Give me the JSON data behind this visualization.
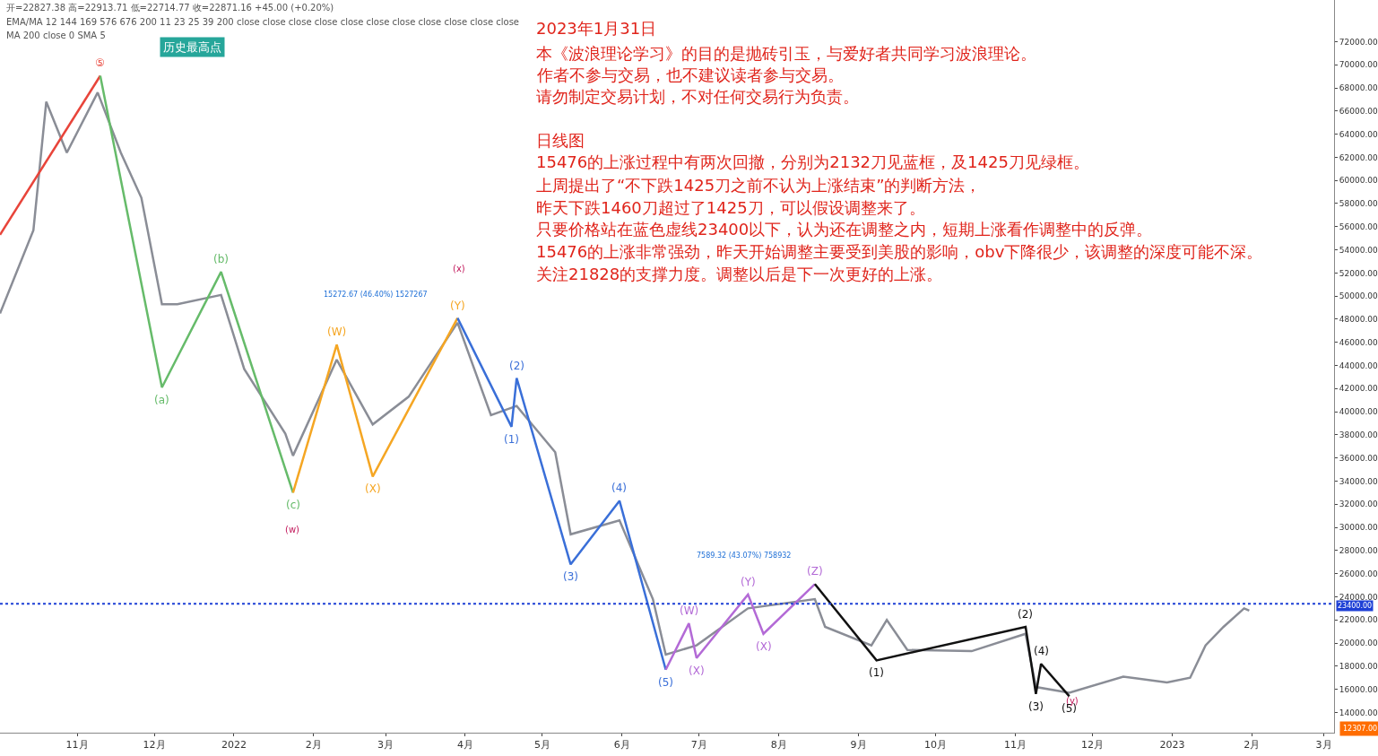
{
  "chart_data": {
    "type": "line",
    "title": "2023年1月31日",
    "annotations": [
      "开=22827.38 高=22913.71 低=22714.77 收=22871.16 +45.00 (+0.20%)",
      "EMA/MA 12 144 169 576 676 200 11 23 25 39 200 close close close close close close close close close close close",
      "MA 200 close 0 SMA 5",
      "本《波浪理论学习》的目的是抛砖引玉，与爱好者共同学习波浪理论。",
      "作者不参与交易，也不建议读者参与交易。",
      "请勿制定交易计划，不对任何交易行为负责。",
      "日线图",
      "15476的上涨过程中有两次回撤，分别为2132刀见蓝框，及1425刀见绿框。",
      "上周提出了“不下跌1425刀之前不认为上涨结束”的判断方法，",
      "昨天下跌1460刀超过了1425刀，可以假设调整来了。",
      "只要价格站在蓝色虚线23400以下，认为还在调整之内，短期上涨看作调整中的反弹。",
      "15476的上涨非常强劲，昨天开始调整主要受到美股的影响，obv下降很少，该调整的深度可能不深。",
      "关注21828的支撑力度。调整以后是下一次更好的上涨。",
      "12307.00",
      "历史最高点",
      "(w)",
      "(x)",
      "(y)",
      "15272.67 (46.40%) 1527267",
      "7589.32 (43.07%) 758932",
      {
        "text": "⑤",
        "x": "2021-11-10",
        "y": 69050
      },
      {
        "text": "(a)",
        "x": "2021-12-04",
        "y": 42100
      },
      {
        "text": "(b)",
        "x": "2021-12-27",
        "y": 52100
      },
      {
        "text": "(c)",
        "x": "2022-01-24",
        "y": 33000
      },
      {
        "text": "(W)",
        "x": "2022-02-10",
        "y": 45800
      },
      {
        "text": "(X)",
        "x": "2022-02-24",
        "y": 34400
      },
      {
        "text": "(Y)",
        "x": "2022-03-29",
        "y": 48100
      },
      {
        "text": "(1)",
        "x": "2022-04-19",
        "y": 38700
      },
      {
        "text": "(2)",
        "x": "2022-04-21",
        "y": 42900
      },
      {
        "text": "(3)",
        "x": "2022-05-12",
        "y": 26800
      },
      {
        "text": "(4)",
        "x": "2022-05-31",
        "y": 32300
      },
      {
        "text": "(5)",
        "x": "2022-06-18",
        "y": 17700
      },
      {
        "text": "(W)",
        "x": "2022-06-27",
        "y": 21700
      },
      {
        "text": "(X)",
        "x": "2022-06-30",
        "y": 18700
      },
      {
        "text": "(Y)",
        "x": "2022-07-20",
        "y": 24200
      },
      {
        "text": "(X)",
        "x": "2022-07-26",
        "y": 20800
      },
      {
        "text": "(Z)",
        "x": "2022-08-15",
        "y": 25100
      },
      {
        "text": "(1)",
        "x": "2022-09-08",
        "y": 18500
      },
      {
        "text": "(2)",
        "x": "2022-11-05",
        "y": 21400
      },
      {
        "text": "(3)",
        "x": "2022-11-09",
        "y": 15600
      },
      {
        "text": "(4)",
        "x": "2022-11-11",
        "y": 18200
      },
      {
        "text": "(5)",
        "x": "2022-11-22",
        "y": 15400
      }
    ],
    "series": [
      {
        "color": "#8a8d96",
        "x": [
          "2021-10-02",
          "2021-10-15",
          "2021-10-20",
          "2021-10-28",
          "2021-11-09",
          "2021-11-18",
          "2021-11-26",
          "2021-12-04",
          "2021-12-10",
          "2021-12-27",
          "2022-01-05",
          "2022-01-21",
          "2022-01-24",
          "2022-02-10",
          "2022-02-24",
          "2022-03-10",
          "2022-03-29",
          "2022-04-11",
          "2022-04-21",
          "2022-05-06",
          "2022-05-12",
          "2022-05-31",
          "2022-06-13",
          "2022-06-18",
          "2022-06-30",
          "2022-07-20",
          "2022-08-15",
          "2022-08-19",
          "2022-09-06",
          "2022-09-12",
          "2022-09-20",
          "2022-10-15",
          "2022-11-05",
          "2022-11-09",
          "2022-11-22",
          "2022-12-13",
          "2022-12-30",
          "2023-01-08",
          "2023-01-14",
          "2023-01-21",
          "2023-01-29",
          "2023-01-31"
        ],
        "values": [
          48500,
          55700,
          66800,
          62400,
          67600,
          62400,
          58500,
          49300,
          49300,
          50100,
          43700,
          38100,
          36200,
          44500,
          38900,
          41300,
          47700,
          39700,
          40500,
          36500,
          29400,
          30600,
          23800,
          19000,
          19800,
          23000,
          23800,
          21400,
          19800,
          22000,
          19400,
          19300,
          20800,
          16200,
          15700,
          17100,
          16600,
          17000,
          19800,
          21400,
          23000,
          22800
        ]
      },
      {
        "color": "#e8443a",
        "x": [
          "2021-10-02",
          "2021-11-10"
        ],
        "values": [
          55300,
          69050
        ]
      },
      {
        "color": "#66bb6a",
        "x": [
          "2021-11-10",
          "2021-12-04",
          "2021-12-27",
          "2022-01-24"
        ],
        "values": [
          69050,
          42100,
          52100,
          33000
        ]
      },
      {
        "color": "#f5a623",
        "x": [
          "2022-01-24",
          "2022-02-10",
          "2022-02-24",
          "2022-03-29"
        ],
        "values": [
          33000,
          45800,
          34400,
          48100
        ]
      },
      {
        "color": "#3a6fd8",
        "x": [
          "2022-03-29",
          "2022-04-19",
          "2022-04-21",
          "2022-05-12",
          "2022-05-31",
          "2022-06-18"
        ],
        "values": [
          48100,
          38700,
          42900,
          26800,
          32300,
          17700
        ]
      },
      {
        "color": "#b36ad6",
        "x": [
          "2022-06-18",
          "2022-06-27",
          "2022-06-30",
          "2022-07-20",
          "2022-07-26",
          "2022-08-15"
        ],
        "values": [
          17700,
          21700,
          18700,
          24200,
          20800,
          25100
        ]
      },
      {
        "color": "#111111",
        "x": [
          "2022-08-15",
          "2022-09-08",
          "2022-11-05",
          "2022-11-09",
          "2022-11-11",
          "2022-11-22"
        ],
        "values": [
          25100,
          18500,
          21400,
          15600,
          18200,
          15400
        ]
      }
    ],
    "xlim": [
      "2021-10-02",
      "2023-03-05"
    ],
    "xticks": [
      {
        "value": "2021-11-01",
        "label": "11月"
      },
      {
        "value": "2021-12-01",
        "label": "12月"
      },
      {
        "value": "2022-01-01",
        "label": "2022"
      },
      {
        "value": "2022-02-01",
        "label": "2月"
      },
      {
        "value": "2022-03-01",
        "label": "3月"
      },
      {
        "value": "2022-04-01",
        "label": "4月"
      },
      {
        "value": "2022-05-01",
        "label": "5月"
      },
      {
        "value": "2022-06-01",
        "label": "6月"
      },
      {
        "value": "2022-07-01",
        "label": "7月"
      },
      {
        "value": "2022-08-01",
        "label": "8月"
      },
      {
        "value": "2022-09-01",
        "label": "9月"
      },
      {
        "value": "2022-10-01",
        "label": "10月"
      },
      {
        "value": "2022-11-01",
        "label": "11月"
      },
      {
        "value": "2022-12-01",
        "label": "12月"
      },
      {
        "value": "2023-01-01",
        "label": "2023"
      },
      {
        "value": "2023-02-01",
        "label": "2月"
      },
      {
        "value": "2023-03-01",
        "label": "3月"
      }
    ],
    "ylim": [
      12250,
      75600
    ],
    "yticks": [
      {
        "value": 14000,
        "label": "14000.00"
      },
      {
        "value": 16000,
        "label": "16000.00"
      },
      {
        "value": 18000,
        "label": "18000.00"
      },
      {
        "value": 20000,
        "label": "20000.00"
      },
      {
        "value": 22000,
        "label": "22000.00"
      },
      {
        "value": 24000,
        "label": "24000.00"
      },
      {
        "value": 26000,
        "label": "26000.00"
      },
      {
        "value": 28000,
        "label": "28000.00"
      },
      {
        "value": 30000,
        "label": "30000.00"
      },
      {
        "value": 32000,
        "label": "32000.00"
      },
      {
        "value": 34000,
        "label": "34000.00"
      },
      {
        "value": 36000,
        "label": "36000.00"
      },
      {
        "value": 38000,
        "label": "38000.00"
      },
      {
        "value": 40000,
        "label": "40000.00"
      },
      {
        "value": 42000,
        "label": "42000.00"
      },
      {
        "value": 44000,
        "label": "44000.00"
      },
      {
        "value": 46000,
        "label": "46000.00"
      },
      {
        "value": 48000,
        "label": "48000.00"
      },
      {
        "value": 50000,
        "label": "50000.00"
      },
      {
        "value": 52000,
        "label": "52000.00"
      },
      {
        "value": 54000,
        "label": "54000.00"
      },
      {
        "value": 56000,
        "label": "56000.00"
      },
      {
        "value": 58000,
        "label": "58000.00"
      },
      {
        "value": 60000,
        "label": "60000.00"
      },
      {
        "value": 62000,
        "label": "62000.00"
      },
      {
        "value": 64000,
        "label": "64000.00"
      },
      {
        "value": 66000,
        "label": "66000.00"
      },
      {
        "value": 68000,
        "label": "68000.00"
      },
      {
        "value": 70000,
        "label": "70000.00"
      },
      {
        "value": 72000,
        "label": "72000.00"
      }
    ],
    "ref_lines": [
      {
        "axis": "y",
        "value": 23400,
        "label": "23400.00",
        "color": "#1e40d6",
        "line_style": "dotted"
      }
    ],
    "marker": "none",
    "line_style": "solid"
  }
}
